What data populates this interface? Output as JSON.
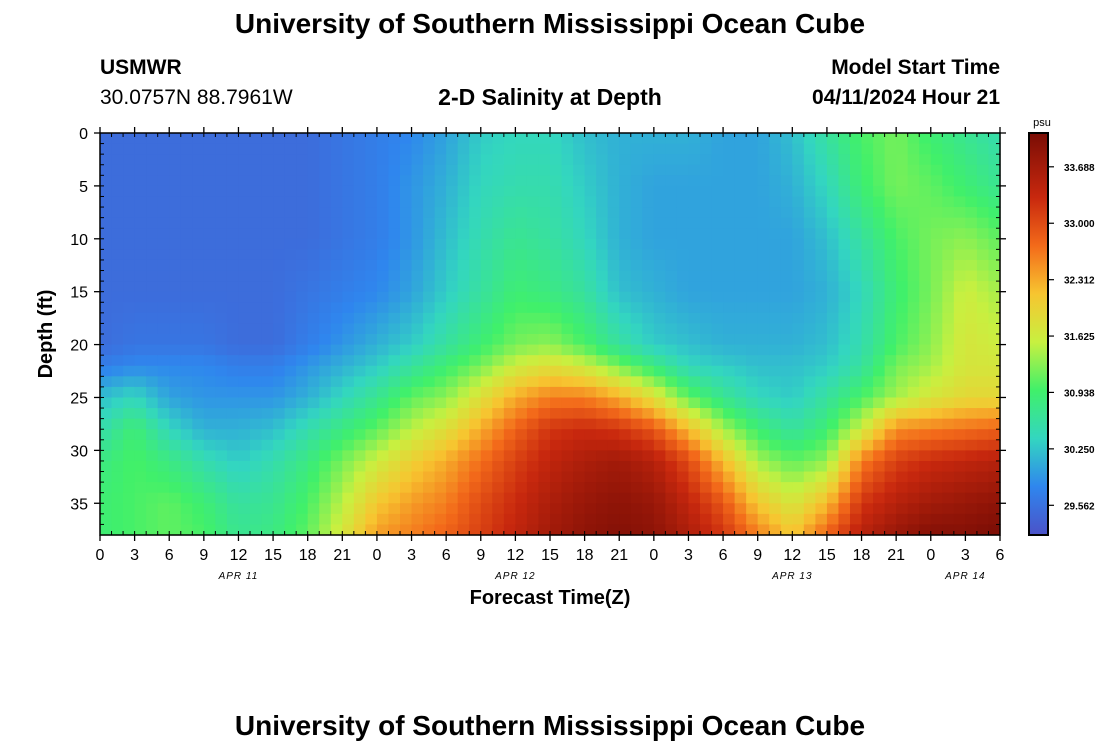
{
  "page": {
    "title": "University of Southern Mississippi Ocean Cube",
    "footer_title": "University of Southern Mississippi Ocean Cube",
    "station": "USMWR",
    "coords": "30.0757N  88.7961W",
    "plot_title": "2-D Salinity at Depth",
    "start_label": "Model Start Time",
    "start_value": "04/11/2024 Hour 21"
  },
  "chart_data": {
    "type": "heatmap",
    "title": "2-D Salinity at Depth",
    "xlabel": "Forecast Time(Z)",
    "ylabel": "Depth (ft)",
    "x_ticks": [
      "0",
      "3",
      "6",
      "9",
      "12",
      "15",
      "18",
      "21",
      "0",
      "3",
      "6",
      "9",
      "12",
      "15",
      "18",
      "21",
      "0",
      "3",
      "6",
      "9",
      "12",
      "15",
      "18",
      "21",
      "0",
      "3",
      "6"
    ],
    "x_ticks_hours": [
      0,
      3,
      6,
      9,
      12,
      15,
      18,
      21,
      24,
      27,
      30,
      33,
      36,
      39,
      42,
      45,
      48,
      51,
      54,
      57,
      60,
      63,
      66,
      69,
      72,
      75,
      78
    ],
    "day_labels": [
      {
        "label": "APR 11",
        "hour": 12
      },
      {
        "label": "APR 12",
        "hour": 36
      },
      {
        "label": "APR 13",
        "hour": 60
      },
      {
        "label": "APR 14",
        "hour": 75
      }
    ],
    "y_ticks": [
      0,
      5,
      10,
      15,
      20,
      25,
      30,
      35
    ],
    "xlim": [
      0,
      78
    ],
    "ylim": [
      0,
      38
    ],
    "colorbar": {
      "unit": "psu",
      "ticks": [
        "33.688",
        "33.000",
        "32.312",
        "31.625",
        "30.938",
        "30.250",
        "29.562"
      ],
      "tick_values": [
        33.688,
        33.0,
        32.312,
        31.625,
        30.938,
        30.25,
        29.562
      ],
      "range": [
        29.2,
        34.1
      ]
    },
    "salinity_depth_levels_ft": [
      0,
      5,
      10,
      15,
      20,
      22,
      25,
      28,
      31,
      35,
      38
    ],
    "salinity_profiles": [
      {
        "hour": 0,
        "values": [
          29.5,
          29.5,
          29.5,
          29.5,
          29.5,
          29.7,
          30.2,
          30.5,
          30.8,
          30.9,
          30.9
        ]
      },
      {
        "hour": 3,
        "values": [
          29.5,
          29.5,
          29.5,
          29.5,
          29.6,
          29.8,
          30.4,
          30.9,
          31.0,
          31.0,
          31.0
        ]
      },
      {
        "hour": 6,
        "values": [
          29.5,
          29.5,
          29.5,
          29.5,
          29.6,
          29.8,
          30.0,
          30.4,
          30.8,
          31.1,
          31.1
        ]
      },
      {
        "hour": 9,
        "values": [
          29.5,
          29.5,
          29.5,
          29.5,
          29.6,
          29.8,
          29.9,
          30.1,
          30.5,
          30.9,
          31.0
        ]
      },
      {
        "hour": 12,
        "values": [
          29.5,
          29.5,
          29.5,
          29.5,
          29.5,
          29.7,
          29.9,
          30.1,
          30.3,
          30.6,
          30.7
        ]
      },
      {
        "hour": 15,
        "values": [
          29.5,
          29.5,
          29.5,
          29.5,
          29.5,
          29.7,
          29.9,
          30.2,
          30.5,
          30.7,
          30.8
        ]
      },
      {
        "hour": 18,
        "values": [
          29.5,
          29.5,
          29.5,
          29.6,
          29.7,
          29.9,
          30.1,
          30.5,
          30.8,
          31.0,
          31.1
        ]
      },
      {
        "hour": 21,
        "values": [
          29.6,
          29.6,
          29.6,
          29.7,
          29.9,
          30.1,
          30.4,
          30.8,
          31.2,
          31.5,
          31.7
        ]
      },
      {
        "hour": 24,
        "values": [
          29.7,
          29.7,
          29.7,
          29.8,
          30.1,
          30.3,
          30.7,
          31.1,
          31.6,
          32.1,
          32.4
        ]
      },
      {
        "hour": 27,
        "values": [
          29.8,
          29.9,
          29.9,
          30.0,
          30.3,
          30.6,
          31.1,
          31.5,
          32.0,
          32.4,
          32.6
        ]
      },
      {
        "hour": 30,
        "values": [
          30.0,
          30.1,
          30.2,
          30.3,
          30.6,
          30.9,
          31.3,
          31.8,
          32.3,
          32.6,
          32.8
        ]
      },
      {
        "hour": 33,
        "values": [
          30.3,
          30.4,
          30.5,
          30.6,
          30.9,
          31.2,
          31.8,
          32.3,
          32.7,
          33.0,
          33.1
        ]
      },
      {
        "hour": 36,
        "values": [
          30.4,
          30.5,
          30.7,
          30.9,
          31.2,
          31.6,
          32.3,
          32.8,
          33.1,
          33.3,
          33.4
        ]
      },
      {
        "hour": 39,
        "values": [
          30.4,
          30.5,
          30.6,
          30.8,
          31.3,
          31.8,
          32.6,
          33.2,
          33.4,
          33.6,
          33.7
        ]
      },
      {
        "hour": 42,
        "values": [
          30.2,
          30.3,
          30.4,
          30.6,
          31.0,
          31.6,
          32.6,
          33.3,
          33.6,
          33.8,
          33.9
        ]
      },
      {
        "hour": 45,
        "values": [
          30.1,
          30.1,
          30.1,
          30.2,
          30.6,
          31.2,
          32.3,
          33.2,
          33.7,
          33.9,
          34.0
        ]
      },
      {
        "hour": 48,
        "values": [
          30.1,
          30.0,
          30.0,
          30.1,
          30.3,
          30.8,
          31.8,
          32.9,
          33.5,
          33.8,
          33.9
        ]
      },
      {
        "hour": 51,
        "values": [
          30.1,
          30.0,
          30.0,
          30.0,
          30.2,
          30.4,
          31.1,
          32.2,
          33.0,
          33.4,
          33.6
        ]
      },
      {
        "hour": 54,
        "values": [
          30.0,
          30.0,
          30.0,
          30.0,
          30.1,
          30.3,
          30.7,
          31.4,
          32.2,
          32.9,
          33.2
        ]
      },
      {
        "hour": 57,
        "values": [
          30.0,
          30.0,
          30.0,
          30.0,
          30.1,
          30.2,
          30.4,
          30.9,
          31.4,
          32.1,
          32.6
        ]
      },
      {
        "hour": 60,
        "values": [
          30.2,
          30.1,
          30.0,
          30.0,
          30.1,
          30.2,
          30.3,
          30.6,
          31.1,
          31.7,
          32.1
        ]
      },
      {
        "hour": 63,
        "values": [
          30.6,
          30.4,
          30.2,
          30.1,
          30.2,
          30.3,
          30.6,
          30.9,
          31.3,
          32.2,
          32.8
        ]
      },
      {
        "hour": 66,
        "values": [
          31.0,
          30.9,
          30.6,
          30.4,
          30.5,
          30.6,
          31.0,
          31.6,
          32.6,
          33.2,
          33.5
        ]
      },
      {
        "hour": 69,
        "values": [
          31.2,
          31.2,
          31.0,
          30.9,
          31.0,
          31.2,
          31.4,
          32.5,
          33.1,
          33.5,
          33.8
        ]
      },
      {
        "hour": 72,
        "values": [
          30.9,
          31.1,
          31.2,
          31.2,
          31.3,
          31.4,
          31.7,
          32.6,
          33.3,
          33.7,
          34.0
        ]
      },
      {
        "hour": 75,
        "values": [
          30.7,
          30.9,
          31.3,
          31.6,
          31.7,
          31.7,
          31.9,
          32.7,
          33.4,
          33.8,
          34.0
        ]
      },
      {
        "hour": 78,
        "values": [
          30.5,
          30.7,
          31.1,
          31.4,
          31.6,
          31.7,
          31.9,
          32.8,
          33.5,
          33.9,
          34.1
        ]
      }
    ]
  }
}
